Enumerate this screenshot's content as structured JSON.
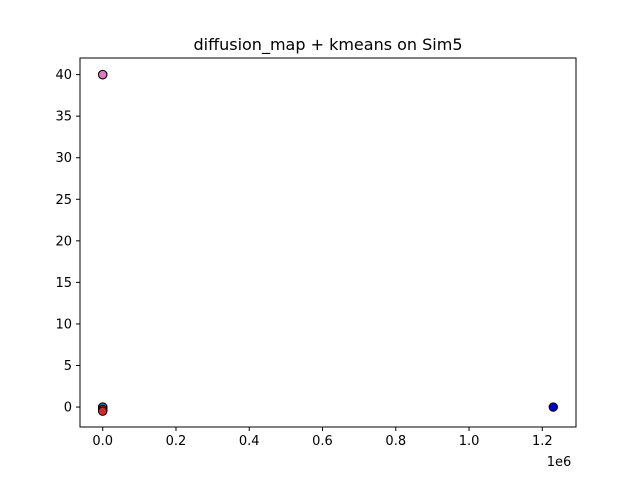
{
  "chart_data": {
    "type": "scatter",
    "title": "diffusion_map + kmeans on Sim5",
    "xlabel": "",
    "ylabel": "",
    "x_offset_text": "1e6",
    "xlim": [
      -62000,
      1292000
    ],
    "ylim": [
      -2.4,
      42
    ],
    "x_ticks": [
      0,
      200000,
      400000,
      600000,
      800000,
      1000000,
      1200000
    ],
    "x_tick_labels": [
      "0.0",
      "0.2",
      "0.4",
      "0.6",
      "0.8",
      "1.0",
      "1.2"
    ],
    "y_ticks": [
      0,
      5,
      10,
      15,
      20,
      25,
      30,
      35,
      40
    ],
    "y_tick_labels": [
      "0",
      "5",
      "10",
      "15",
      "20",
      "25",
      "30",
      "35",
      "40"
    ],
    "grid": false,
    "legend": "none",
    "series": [
      {
        "color": "#e377c2",
        "points": [
          [
            0,
            40
          ],
          [
            0,
            40
          ]
        ]
      },
      {
        "color": "#8c564b",
        "points": [
          [
            0,
            -0.2
          ],
          [
            0,
            -0.4
          ],
          [
            0,
            0
          ],
          [
            0,
            -0.3
          ]
        ]
      },
      {
        "color": "#1f77b4",
        "points": [
          [
            0,
            -0.1
          ],
          [
            0,
            0
          ]
        ]
      },
      {
        "color": "#d62728",
        "points": [
          [
            0,
            -0.3
          ],
          [
            0,
            -0.5
          ]
        ]
      },
      {
        "color": "#0000cc",
        "points": [
          [
            1230000,
            0
          ]
        ]
      }
    ]
  }
}
